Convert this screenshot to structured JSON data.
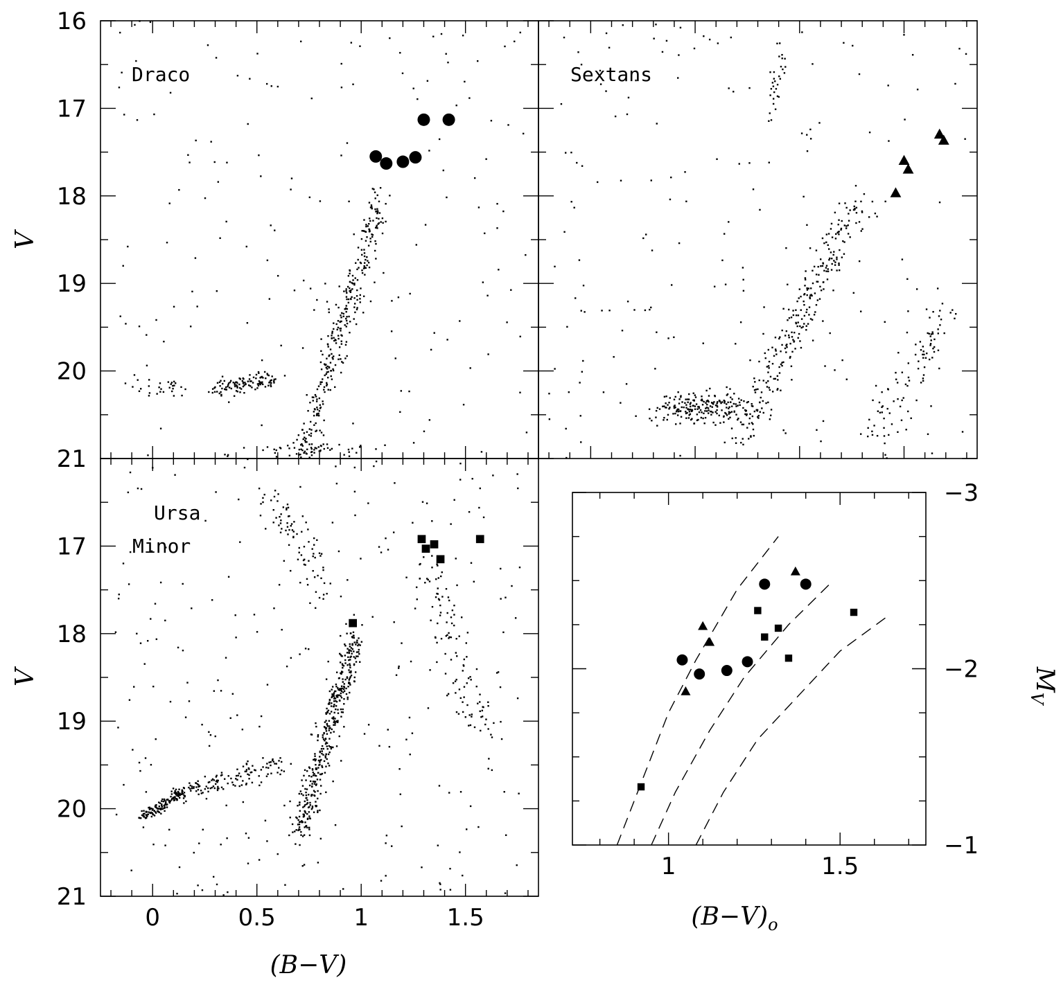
{
  "figure": {
    "panels": {
      "draco": {
        "label": "Draco"
      },
      "sextans": {
        "label": "Sextans"
      },
      "ursa_minor": {
        "label_line1": "Ursa",
        "label_line2": "Minor"
      }
    },
    "axes": {
      "cmd_xlabel": "(B−V)",
      "cmd_ylabel": "V",
      "inset_xlabel": "(B−V)",
      "inset_xlabel_subscript": "o",
      "inset_ylabel": "M",
      "inset_ylabel_subscript": "V"
    },
    "colors": {
      "ink": "#000000",
      "background": "#ffffff"
    }
  },
  "chart_data": [
    {
      "type": "scatter",
      "panel": "Draco",
      "xlim": [
        -0.25,
        1.85
      ],
      "ylim": [
        21,
        16
      ],
      "y_ticks": [
        16,
        17,
        18,
        19,
        20,
        21
      ],
      "y_tick_labels": [
        "16",
        "17",
        "18",
        "19",
        "20",
        "21"
      ],
      "series": [
        {
          "name": "",
          "marker": "circle",
          "x": [
            1.07,
            1.12,
            1.2,
            1.26,
            1.3,
            1.42
          ],
          "y": [
            17.55,
            17.63,
            17.61,
            17.56,
            17.13,
            17.13
          ]
        }
      ],
      "field_stars": "small dots: sparse field stars, a red giant branch rising from (0.75, 21) to (1.1, 18), a horizontal branch near V = 20.2 over B-V 0.3-0.6"
    },
    {
      "type": "scatter",
      "panel": "Sextans",
      "xlim": [
        -0.25,
        1.85
      ],
      "ylim": [
        21,
        16
      ],
      "series": [
        {
          "name": "",
          "marker": "triangle",
          "x": [
            1.46,
            1.5,
            1.52,
            1.67,
            1.69
          ],
          "y": [
            17.97,
            17.6,
            17.7,
            17.3,
            17.37
          ]
        }
      ],
      "field_stars": "small dots: red giant branch from (0.7, 20.8) to (1.3, 18.0), horizontal branch clump near V = 20.4, sparse field"
    },
    {
      "type": "scatter",
      "panel": "Ursa Minor",
      "xlim": [
        -0.25,
        1.85
      ],
      "ylim": [
        21,
        16
      ],
      "x_ticks": [
        0,
        0.5,
        1,
        1.5
      ],
      "x_tick_labels": [
        "0",
        "0.5",
        "1",
        "1.5"
      ],
      "y_ticks": [
        17,
        18,
        19,
        20,
        21
      ],
      "y_tick_labels": [
        "17",
        "18",
        "19",
        "20",
        "21"
      ],
      "series": [
        {
          "name": "",
          "marker": "square",
          "x": [
            0.96,
            1.29,
            1.31,
            1.35,
            1.38,
            1.57
          ],
          "y": [
            17.88,
            16.92,
            17.03,
            16.98,
            17.15,
            16.92
          ]
        }
      ],
      "field_stars": "small dots: blue horizontal branch from (-0.05, 20.1) to (0.15, 19.8), red giant branch from (0.7, 20.3) to (1.0, 18.0), dense field"
    },
    {
      "type": "scatter",
      "panel": "inset",
      "xlim": [
        0.72,
        1.75
      ],
      "ylim": [
        -1,
        -3
      ],
      "x_ticks": [
        1,
        1.5
      ],
      "x_tick_labels": [
        "1",
        "1.5"
      ],
      "y_ticks": [
        -3,
        -2,
        -1
      ],
      "y_tick_labels": [
        "−3",
        "−2",
        "−1"
      ],
      "series": [
        {
          "name": "",
          "marker": "circle",
          "x": [
            1.04,
            1.09,
            1.17,
            1.23,
            1.28,
            1.4
          ],
          "y": [
            -2.05,
            -1.97,
            -1.99,
            -2.04,
            -2.48,
            -2.48
          ]
        },
        {
          "name": "",
          "marker": "triangle",
          "x": [
            1.05,
            1.1,
            1.12,
            1.37
          ],
          "y": [
            -1.87,
            -2.24,
            -2.15,
            -2.55
          ]
        },
        {
          "name": "",
          "marker": "square",
          "x": [
            0.92,
            1.26,
            1.28,
            1.32,
            1.35,
            1.54
          ],
          "y": [
            -1.33,
            -2.33,
            -2.18,
            -2.23,
            -2.06,
            -2.32
          ]
        }
      ],
      "curves": [
        {
          "x": [
            0.85,
            0.92,
            1.0,
            1.08,
            1.2,
            1.32
          ],
          "y": [
            -1.0,
            -1.35,
            -1.75,
            -2.05,
            -2.45,
            -2.75
          ]
        },
        {
          "x": [
            0.95,
            1.02,
            1.12,
            1.22,
            1.35,
            1.48
          ],
          "y": [
            -1.0,
            -1.3,
            -1.65,
            -1.95,
            -2.25,
            -2.5
          ]
        },
        {
          "x": [
            1.08,
            1.16,
            1.26,
            1.38,
            1.5,
            1.64
          ],
          "y": [
            -1.0,
            -1.3,
            -1.6,
            -1.85,
            -2.1,
            -2.3
          ]
        }
      ]
    }
  ]
}
